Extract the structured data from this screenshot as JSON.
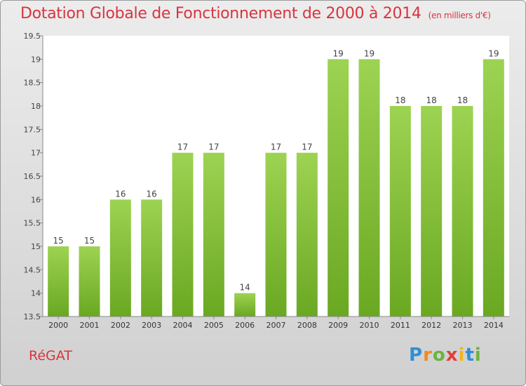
{
  "header": {
    "title": "Dotation Globale de Fonctionnement de 2000 à 2014",
    "unit": "(en milliers d'€)"
  },
  "footer": {
    "commune": "RéGAT",
    "logo_letters": [
      "P",
      "r",
      "o",
      "x",
      "i",
      "t",
      "i"
    ],
    "logo_colors": [
      "#2f8fd6",
      "#f08a1c",
      "#6cb33f",
      "#e23d3d",
      "#f0b81c",
      "#2f8fd6",
      "#6cb33f"
    ]
  },
  "colors": {
    "bar_light": "#9dd352",
    "bar_dark": "#6aa822",
    "title": "#d9343f"
  },
  "chart_data": {
    "type": "bar",
    "title": "Dotation Globale de Fonctionnement de 2000 à 2014",
    "subtitle": "(en milliers d'€)",
    "categories": [
      "2000",
      "2001",
      "2002",
      "2003",
      "2004",
      "2005",
      "2006",
      "2007",
      "2008",
      "2009",
      "2010",
      "2011",
      "2012",
      "2013",
      "2014"
    ],
    "values": [
      15,
      15,
      16,
      16,
      17,
      17,
      14,
      17,
      17,
      19,
      19,
      18,
      18,
      18,
      19
    ],
    "data_labels": [
      "15",
      "15",
      "16",
      "16",
      "17",
      "17",
      "14",
      "17",
      "17",
      "19",
      "19",
      "18",
      "18",
      "18",
      "19"
    ],
    "ylim": [
      13.5,
      19.5
    ],
    "yticks": [
      13.5,
      14,
      14.5,
      15,
      15.5,
      16,
      16.5,
      17,
      17.5,
      18,
      18.5,
      19,
      19.5
    ],
    "ytick_labels": [
      "13.5",
      "14",
      "14.5",
      "15",
      "15.5",
      "16",
      "16.5",
      "17",
      "17.5",
      "18",
      "18.5",
      "19",
      "19.5"
    ],
    "grid": false,
    "xlabel": "",
    "ylabel": ""
  }
}
